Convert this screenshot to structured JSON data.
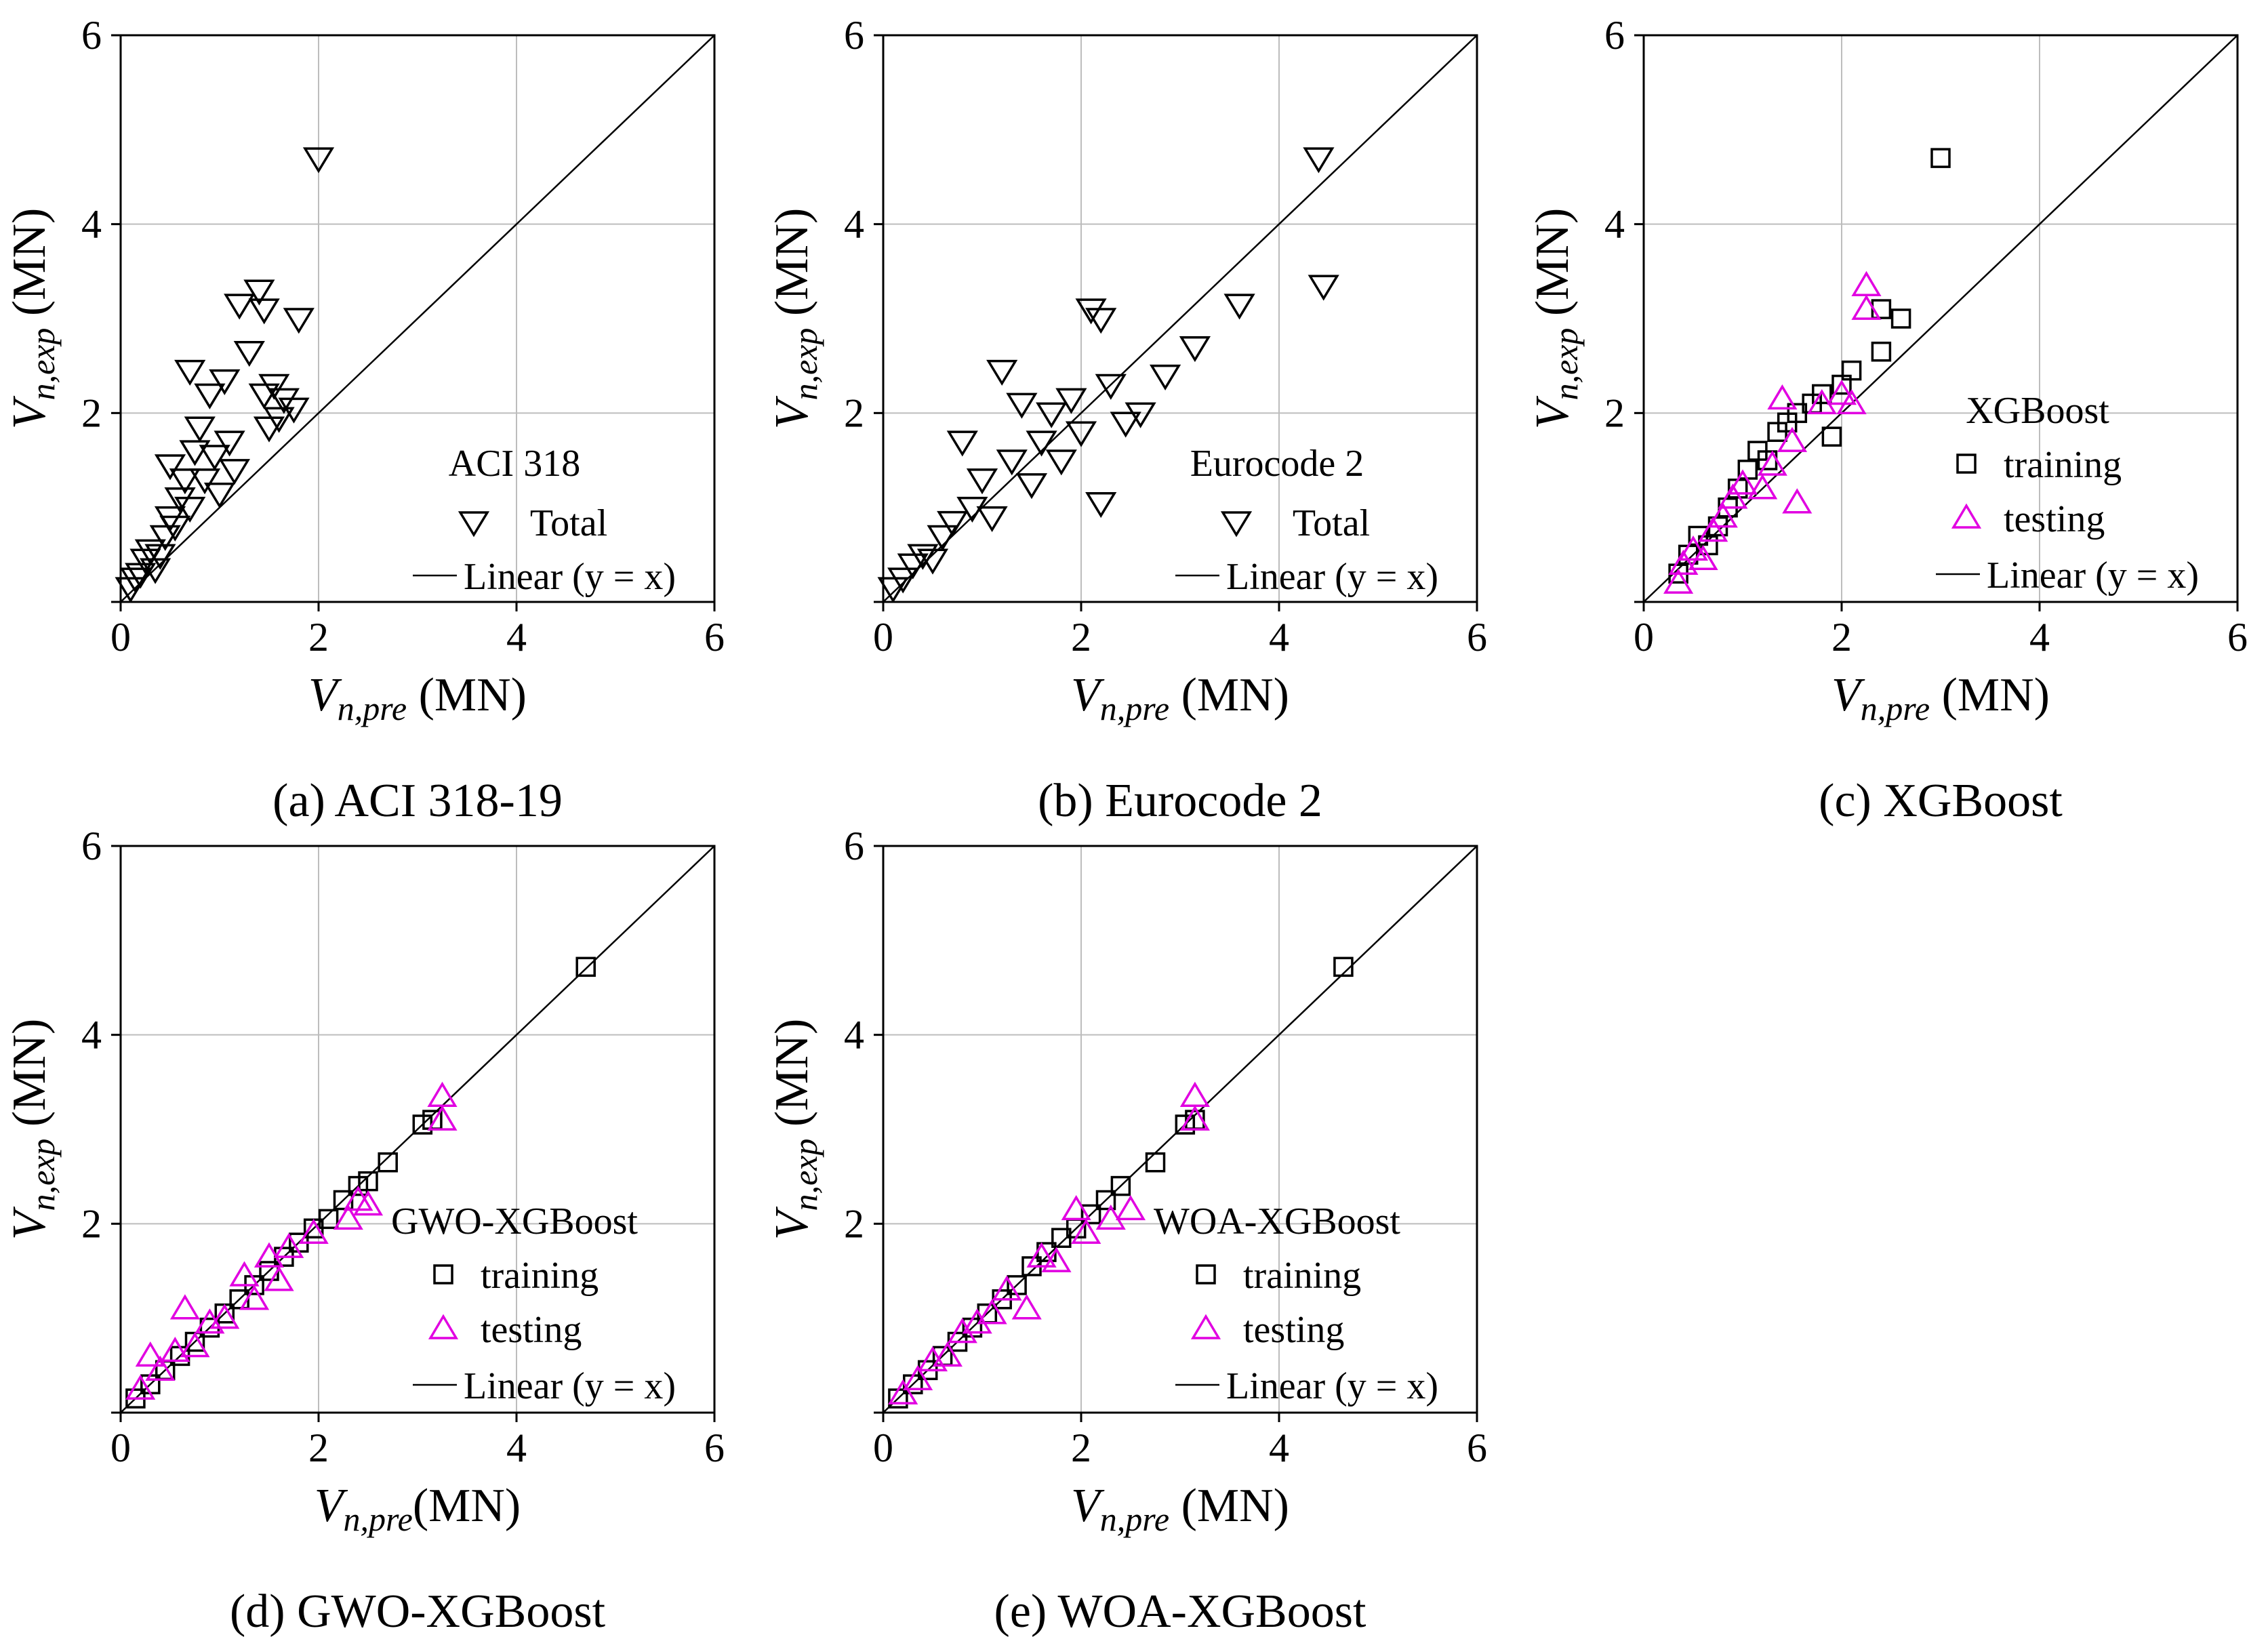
{
  "figure": {
    "tick_values": [
      "0",
      "2",
      "4",
      "6"
    ],
    "ylabel": {
      "main": "V",
      "sub": "n,exp",
      "unit": " (MN)"
    },
    "marker_colors": {
      "black": "#000000",
      "magenta": "#e100e1"
    }
  },
  "chart_data": [
    {
      "type": "scatter",
      "id": "a",
      "caption": "(a) ACI 318-19",
      "xlabel": {
        "main": "V",
        "sub": "n,pre",
        "unit": " (MN)"
      },
      "xlim": [
        0,
        6
      ],
      "ylim": [
        0,
        6
      ],
      "grid": true,
      "legend": {
        "title": "ACI 318",
        "entries": [
          "Total"
        ],
        "line": "Linear (y = x)"
      },
      "series": [
        {
          "name": "Total",
          "marker": "triangle-down",
          "color": "#000000",
          "points": [
            [
              0.1,
              0.15
            ],
            [
              0.15,
              0.25
            ],
            [
              0.2,
              0.3
            ],
            [
              0.25,
              0.45
            ],
            [
              0.3,
              0.55
            ],
            [
              0.35,
              0.35
            ],
            [
              0.4,
              0.5
            ],
            [
              0.45,
              0.7
            ],
            [
              0.5,
              0.9
            ],
            [
              0.5,
              1.45
            ],
            [
              0.55,
              0.8
            ],
            [
              0.6,
              1.1
            ],
            [
              0.65,
              1.3
            ],
            [
              0.7,
              1.0
            ],
            [
              0.7,
              2.45
            ],
            [
              0.75,
              1.6
            ],
            [
              0.8,
              1.85
            ],
            [
              0.85,
              1.3
            ],
            [
              0.9,
              2.2
            ],
            [
              0.95,
              1.55
            ],
            [
              1.0,
              1.15
            ],
            [
              1.05,
              2.35
            ],
            [
              1.1,
              1.7
            ],
            [
              1.15,
              1.4
            ],
            [
              1.2,
              3.15
            ],
            [
              1.3,
              2.65
            ],
            [
              1.4,
              3.3
            ],
            [
              1.45,
              3.1
            ],
            [
              1.45,
              2.2
            ],
            [
              1.5,
              1.85
            ],
            [
              1.55,
              2.3
            ],
            [
              1.6,
              1.95
            ],
            [
              1.65,
              2.15
            ],
            [
              1.75,
              2.05
            ],
            [
              1.8,
              3.0
            ],
            [
              2.0,
              4.7
            ]
          ]
        }
      ]
    },
    {
      "type": "scatter",
      "id": "b",
      "caption": "(b) Eurocode 2",
      "xlabel": {
        "main": "V",
        "sub": "n,pre",
        "unit": " (MN)"
      },
      "xlim": [
        0,
        6
      ],
      "ylim": [
        0,
        6
      ],
      "grid": true,
      "legend": {
        "title": "Eurocode 2",
        "entries": [
          "Total"
        ],
        "line": "Linear (y = x)"
      },
      "series": [
        {
          "name": "Total",
          "marker": "triangle-down",
          "color": "#000000",
          "points": [
            [
              0.1,
              0.15
            ],
            [
              0.2,
              0.25
            ],
            [
              0.3,
              0.4
            ],
            [
              0.4,
              0.5
            ],
            [
              0.5,
              0.45
            ],
            [
              0.6,
              0.7
            ],
            [
              0.7,
              0.85
            ],
            [
              0.8,
              1.7
            ],
            [
              0.9,
              1.0
            ],
            [
              1.0,
              1.3
            ],
            [
              1.1,
              0.9
            ],
            [
              1.2,
              2.45
            ],
            [
              1.3,
              1.5
            ],
            [
              1.4,
              2.1
            ],
            [
              1.5,
              1.25
            ],
            [
              1.6,
              1.7
            ],
            [
              1.7,
              2.0
            ],
            [
              1.8,
              1.5
            ],
            [
              1.9,
              2.15
            ],
            [
              2.0,
              1.8
            ],
            [
              2.1,
              3.1
            ],
            [
              2.2,
              3.0
            ],
            [
              2.2,
              1.05
            ],
            [
              2.3,
              2.3
            ],
            [
              2.45,
              1.9
            ],
            [
              2.6,
              2.0
            ],
            [
              2.85,
              2.4
            ],
            [
              3.15,
              2.7
            ],
            [
              3.6,
              3.15
            ],
            [
              4.4,
              4.7
            ],
            [
              4.45,
              3.35
            ]
          ]
        }
      ]
    },
    {
      "type": "scatter",
      "id": "c",
      "caption": "(c) XGBoost",
      "xlabel": {
        "main": "V",
        "sub": "n,pre",
        "unit": " (MN)"
      },
      "xlim": [
        0,
        6
      ],
      "ylim": [
        0,
        6
      ],
      "grid": true,
      "legend": {
        "title": "XGBoost",
        "entries": [
          "training",
          "testing"
        ],
        "line": "Linear (y = x)"
      },
      "series": [
        {
          "name": "training",
          "marker": "square",
          "color": "#000000",
          "points": [
            [
              0.35,
              0.3
            ],
            [
              0.45,
              0.5
            ],
            [
              0.55,
              0.7
            ],
            [
              0.65,
              0.6
            ],
            [
              0.75,
              0.8
            ],
            [
              0.85,
              1.0
            ],
            [
              0.95,
              1.2
            ],
            [
              1.05,
              1.4
            ],
            [
              1.15,
              1.6
            ],
            [
              1.25,
              1.5
            ],
            [
              1.35,
              1.8
            ],
            [
              1.45,
              1.9
            ],
            [
              1.55,
              2.0
            ],
            [
              1.7,
              2.1
            ],
            [
              1.8,
              2.2
            ],
            [
              1.9,
              1.75
            ],
            [
              2.0,
              2.3
            ],
            [
              2.1,
              2.45
            ],
            [
              2.4,
              2.65
            ],
            [
              2.4,
              3.1
            ],
            [
              2.6,
              3.0
            ],
            [
              3.0,
              4.7
            ]
          ]
        },
        {
          "name": "testing",
          "marker": "triangle-up",
          "color": "#e100e1",
          "points": [
            [
              0.35,
              0.2
            ],
            [
              0.4,
              0.4
            ],
            [
              0.5,
              0.55
            ],
            [
              0.6,
              0.45
            ],
            [
              0.7,
              0.75
            ],
            [
              0.8,
              0.9
            ],
            [
              0.9,
              1.1
            ],
            [
              1.0,
              1.25
            ],
            [
              1.2,
              1.2
            ],
            [
              1.3,
              1.45
            ],
            [
              1.4,
              2.15
            ],
            [
              1.5,
              1.7
            ],
            [
              1.55,
              1.05
            ],
            [
              1.8,
              2.1
            ],
            [
              2.0,
              2.2
            ],
            [
              2.1,
              2.1
            ],
            [
              2.25,
              3.1
            ],
            [
              2.25,
              3.35
            ]
          ]
        }
      ]
    },
    {
      "type": "scatter",
      "id": "d",
      "caption": "(d) GWO-XGBoost",
      "xlabel": {
        "main": "V",
        "sub": "n,pre",
        "unit": "(MN)"
      },
      "xlim": [
        0,
        6
      ],
      "ylim": [
        0,
        6
      ],
      "grid": true,
      "legend": {
        "title": "GWO-XGBoost",
        "entries": [
          "training",
          "testing"
        ],
        "line": "Linear (y = x)"
      },
      "series": [
        {
          "name": "training",
          "marker": "square",
          "color": "#000000",
          "points": [
            [
              0.15,
              0.15
            ],
            [
              0.3,
              0.3
            ],
            [
              0.45,
              0.45
            ],
            [
              0.6,
              0.6
            ],
            [
              0.75,
              0.75
            ],
            [
              0.9,
              0.9
            ],
            [
              1.05,
              1.05
            ],
            [
              1.2,
              1.2
            ],
            [
              1.35,
              1.35
            ],
            [
              1.5,
              1.5
            ],
            [
              1.65,
              1.65
            ],
            [
              1.8,
              1.8
            ],
            [
              1.95,
              1.95
            ],
            [
              2.1,
              2.05
            ],
            [
              2.25,
              2.25
            ],
            [
              2.4,
              2.4
            ],
            [
              2.5,
              2.45
            ],
            [
              2.7,
              2.65
            ],
            [
              3.05,
              3.05
            ],
            [
              3.15,
              3.1
            ],
            [
              4.7,
              4.72
            ]
          ]
        },
        {
          "name": "testing",
          "marker": "triangle-up",
          "color": "#e100e1",
          "points": [
            [
              0.2,
              0.25
            ],
            [
              0.3,
              0.6
            ],
            [
              0.4,
              0.45
            ],
            [
              0.55,
              0.65
            ],
            [
              0.65,
              1.1
            ],
            [
              0.75,
              0.7
            ],
            [
              0.9,
              0.95
            ],
            [
              1.05,
              1.0
            ],
            [
              1.25,
              1.45
            ],
            [
              1.35,
              1.2
            ],
            [
              1.5,
              1.65
            ],
            [
              1.6,
              1.4
            ],
            [
              1.7,
              1.75
            ],
            [
              1.95,
              1.9
            ],
            [
              2.3,
              2.05
            ],
            [
              2.4,
              2.25
            ],
            [
              2.5,
              2.2
            ],
            [
              3.25,
              3.1
            ],
            [
              3.25,
              3.35
            ]
          ]
        }
      ]
    },
    {
      "type": "scatter",
      "id": "e",
      "caption": "(e) WOA-XGBoost",
      "xlabel": {
        "main": "V",
        "sub": "n,pre",
        "unit": " (MN)"
      },
      "xlim": [
        0,
        6
      ],
      "ylim": [
        0,
        6
      ],
      "grid": true,
      "legend": {
        "title": "WOA-XGBoost",
        "entries": [
          "training",
          "testing"
        ],
        "line": "Linear (y = x)"
      },
      "series": [
        {
          "name": "training",
          "marker": "square",
          "color": "#000000",
          "points": [
            [
              0.15,
              0.15
            ],
            [
              0.3,
              0.3
            ],
            [
              0.45,
              0.45
            ],
            [
              0.6,
              0.6
            ],
            [
              0.75,
              0.75
            ],
            [
              0.9,
              0.9
            ],
            [
              1.05,
              1.05
            ],
            [
              1.2,
              1.2
            ],
            [
              1.35,
              1.35
            ],
            [
              1.5,
              1.55
            ],
            [
              1.65,
              1.7
            ],
            [
              1.8,
              1.85
            ],
            [
              1.95,
              1.95
            ],
            [
              2.1,
              2.1
            ],
            [
              2.25,
              2.25
            ],
            [
              2.4,
              2.4
            ],
            [
              2.75,
              2.65
            ],
            [
              3.05,
              3.05
            ],
            [
              3.15,
              3.1
            ],
            [
              4.65,
              4.72
            ]
          ]
        },
        {
          "name": "testing",
          "marker": "triangle-up",
          "color": "#e100e1",
          "points": [
            [
              0.2,
              0.2
            ],
            [
              0.35,
              0.35
            ],
            [
              0.5,
              0.55
            ],
            [
              0.65,
              0.6
            ],
            [
              0.8,
              0.85
            ],
            [
              0.95,
              0.95
            ],
            [
              1.1,
              1.05
            ],
            [
              1.25,
              1.3
            ],
            [
              1.45,
              1.1
            ],
            [
              1.6,
              1.65
            ],
            [
              1.75,
              1.6
            ],
            [
              1.95,
              2.15
            ],
            [
              2.05,
              1.9
            ],
            [
              2.3,
              2.05
            ],
            [
              2.5,
              2.15
            ],
            [
              3.15,
              3.1
            ],
            [
              3.15,
              3.35
            ]
          ]
        }
      ]
    }
  ]
}
